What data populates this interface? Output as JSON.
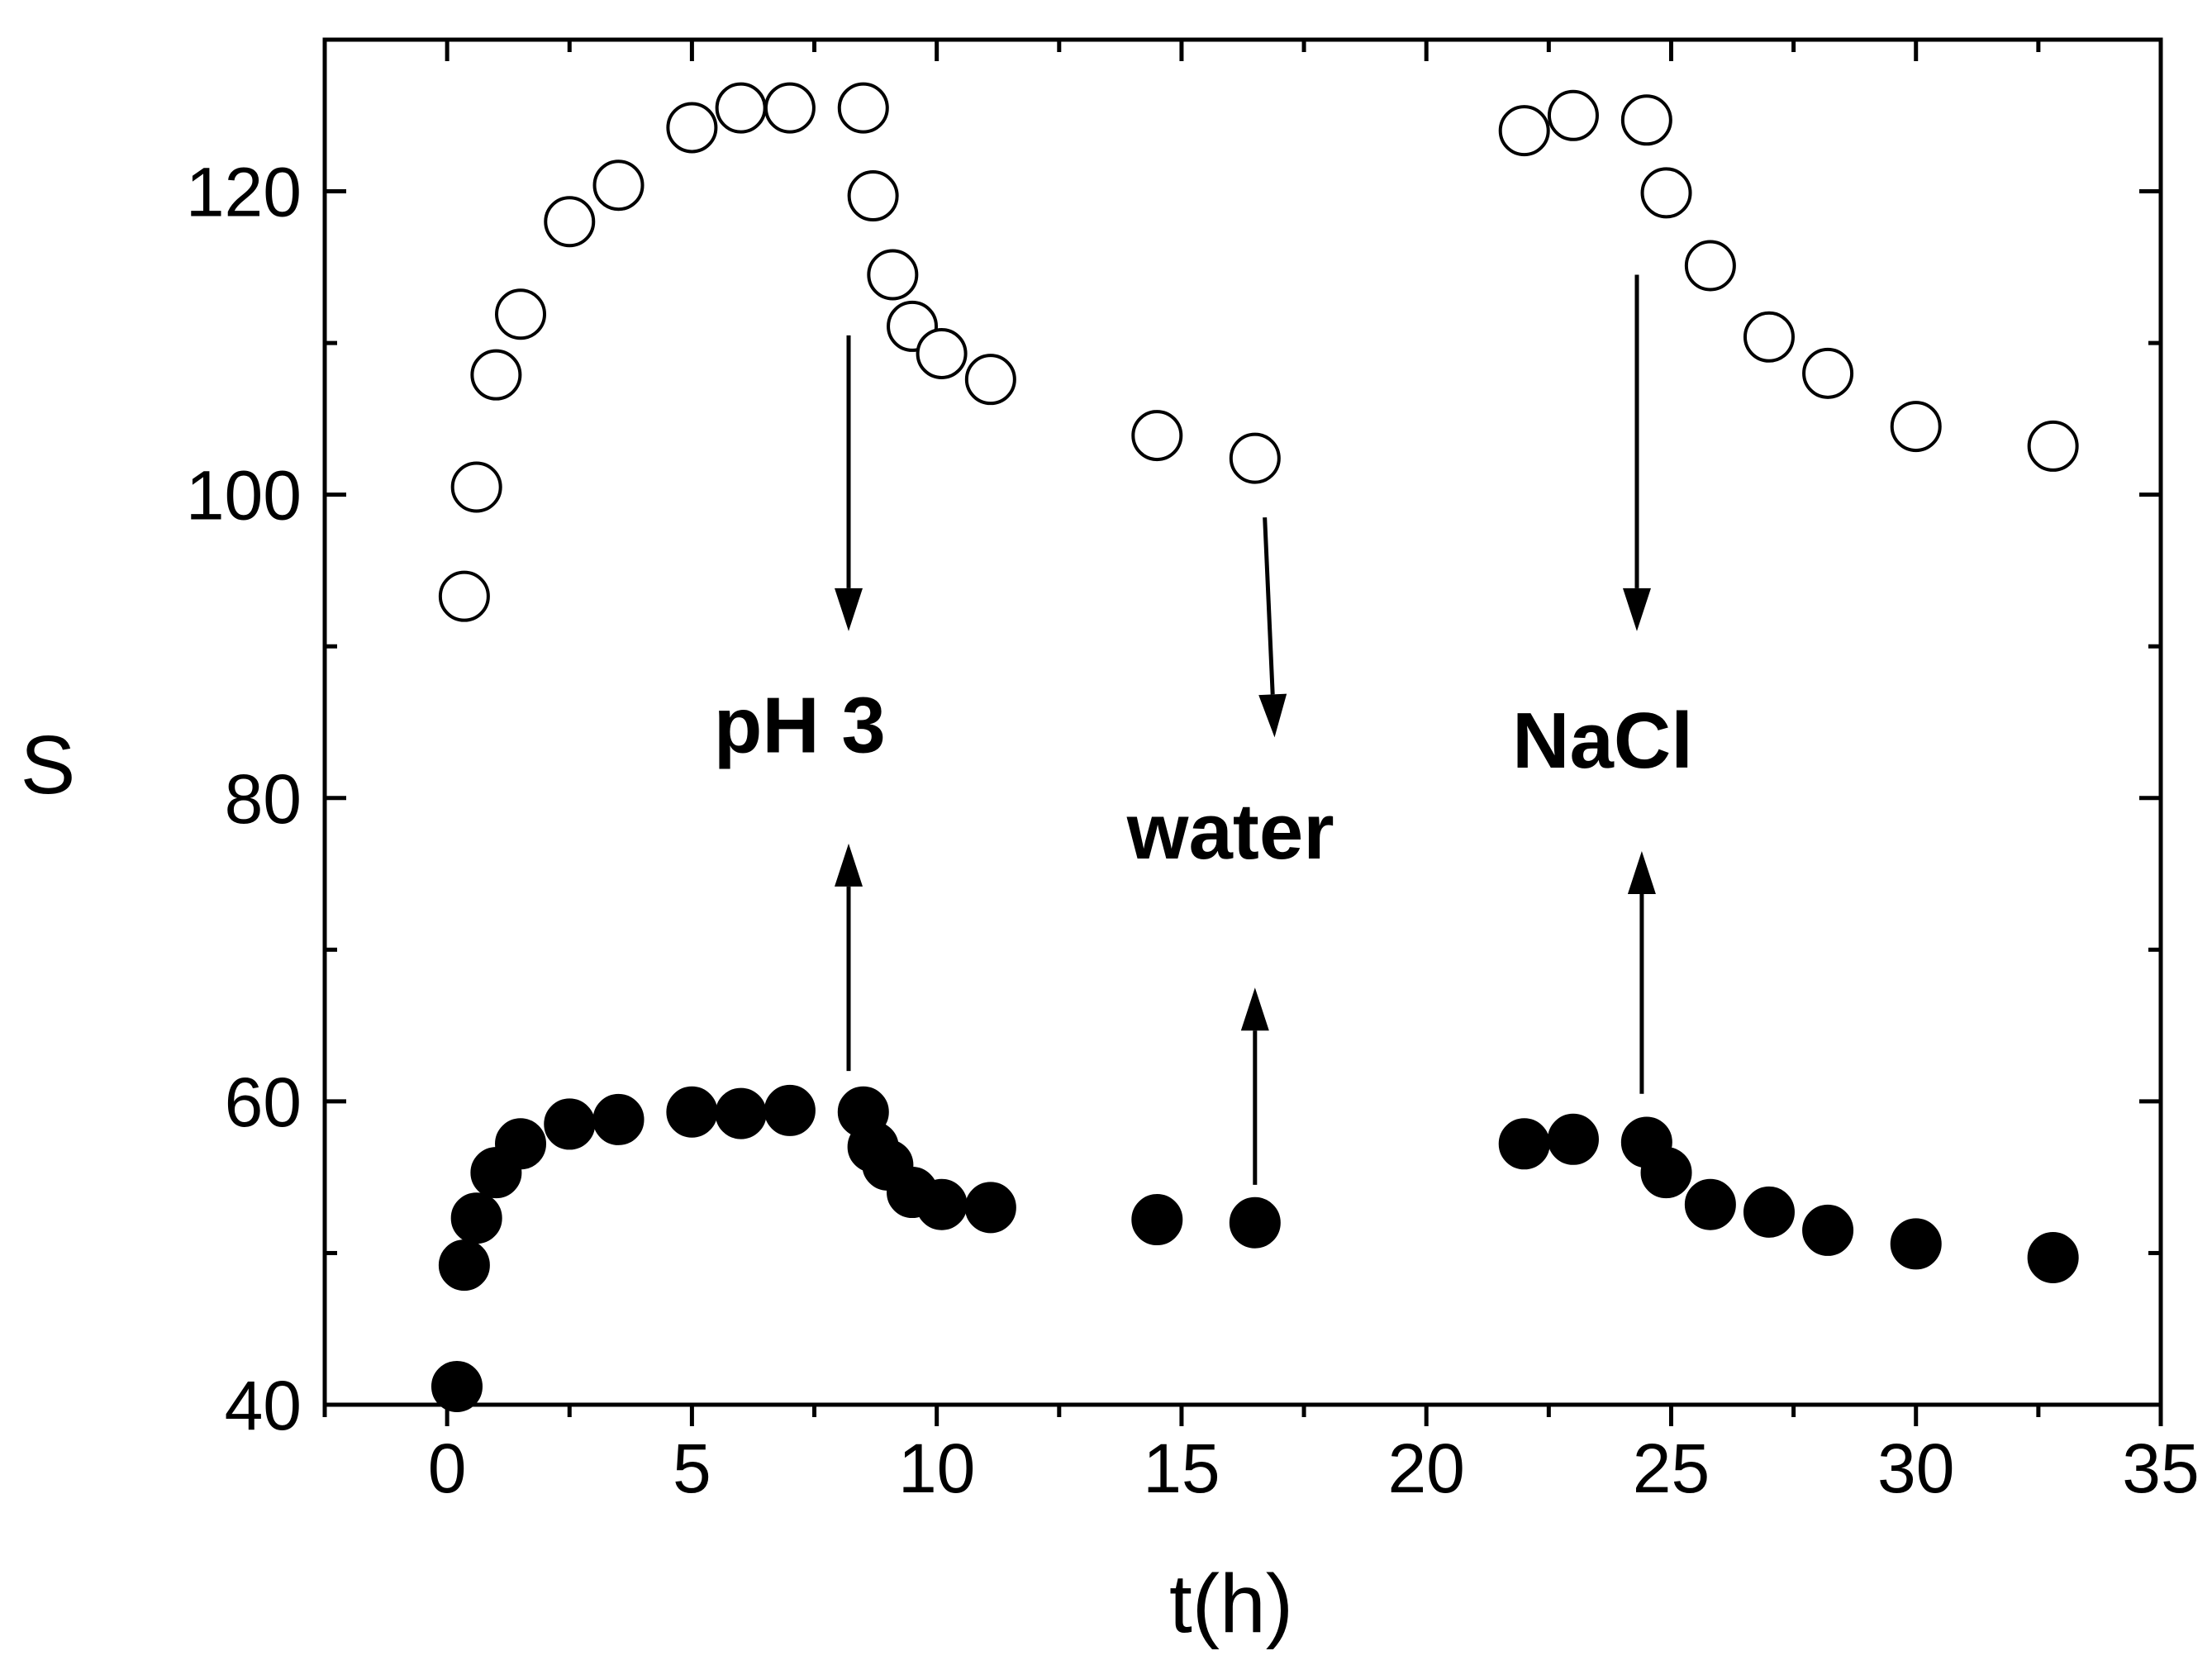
{
  "chart_data": {
    "type": "scatter",
    "title": "",
    "xlabel": "t(h)",
    "ylabel": "S",
    "xlim": [
      -2.5,
      35
    ],
    "ylim": [
      40,
      130
    ],
    "xticks": [
      0,
      5,
      10,
      15,
      20,
      25,
      30,
      35
    ],
    "yticks": [
      40,
      60,
      80,
      100,
      120
    ],
    "grid": false,
    "series": [
      {
        "name": "open-circles",
        "marker": "open-circle",
        "color": "#000000",
        "x": [
          0.35,
          0.6,
          1.0,
          1.5,
          2.5,
          3.5,
          5.0,
          6.0,
          7.0,
          8.5,
          8.7,
          9.1,
          9.5,
          10.1,
          11.1,
          14.5,
          16.5,
          22.0,
          23.0,
          24.5,
          24.9,
          25.8,
          27.0,
          28.2,
          30.0,
          32.8
        ],
        "y": [
          93.3,
          100.5,
          107.9,
          111.9,
          118.0,
          120.4,
          124.2,
          125.5,
          125.5,
          125.5,
          119.7,
          114.5,
          111.1,
          109.3,
          107.6,
          103.9,
          102.4,
          124.0,
          125.0,
          124.7,
          119.9,
          115.1,
          110.4,
          108.0,
          104.5,
          103.2
        ]
      },
      {
        "name": "filled-circles",
        "marker": "filled-circle",
        "color": "#000000",
        "x": [
          0.2,
          0.35,
          0.6,
          1.0,
          1.5,
          2.5,
          3.5,
          5.0,
          6.0,
          7.0,
          8.5,
          8.7,
          9.0,
          9.5,
          10.1,
          11.1,
          14.5,
          16.5,
          22.0,
          23.0,
          24.5,
          24.9,
          25.8,
          27.0,
          28.2,
          30.0,
          32.8
        ],
        "y": [
          41.2,
          49.2,
          52.3,
          55.3,
          57.2,
          58.5,
          58.8,
          59.3,
          59.2,
          59.4,
          59.3,
          57.0,
          55.8,
          54.0,
          53.2,
          53.0,
          52.2,
          52.0,
          57.2,
          57.5,
          57.3,
          55.3,
          53.2,
          52.7,
          51.5,
          50.6,
          49.7
        ]
      }
    ],
    "annotations": [
      {
        "text": "pH 3",
        "x": 7.2,
        "y": 83
      },
      {
        "text": "water",
        "x": 16.0,
        "y": 76
      },
      {
        "text": "NaCl",
        "x": 23.6,
        "y": 82
      }
    ],
    "arrows": [
      {
        "from": [
          8.2,
          110.5
        ],
        "to": [
          8.2,
          91
        ]
      },
      {
        "from": [
          8.2,
          62
        ],
        "to": [
          8.2,
          77
        ]
      },
      {
        "from": [
          16.7,
          98.5
        ],
        "to": [
          16.9,
          84
        ]
      },
      {
        "from": [
          16.5,
          54.5
        ],
        "to": [
          16.5,
          67.5
        ]
      },
      {
        "from": [
          24.3,
          114.5
        ],
        "to": [
          24.3,
          91
        ]
      },
      {
        "from": [
          24.4,
          60.5
        ],
        "to": [
          24.4,
          76.5
        ]
      }
    ]
  }
}
